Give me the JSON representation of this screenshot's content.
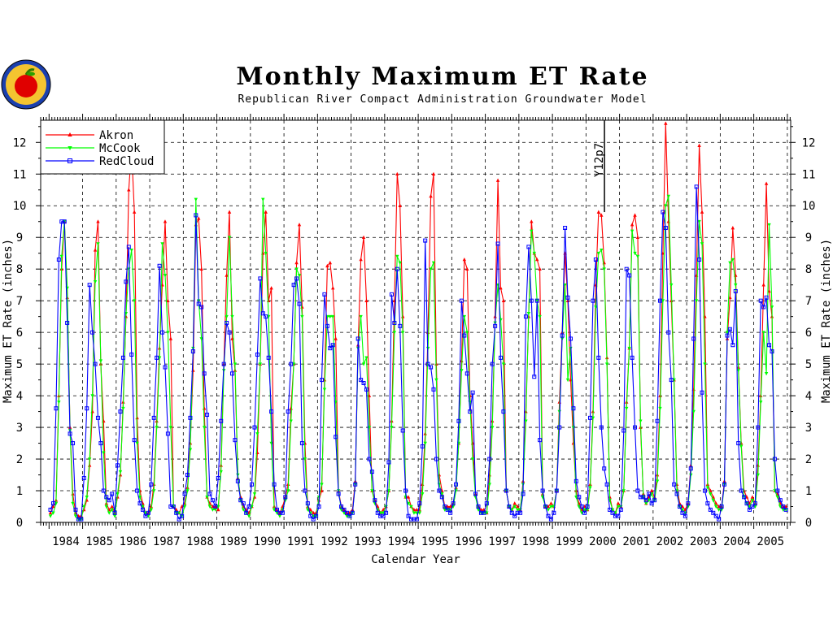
{
  "chart_data": {
    "type": "line",
    "title": "Monthly Maximum ET Rate",
    "subtitle": "Republican River Compact Administration Groundwater Model",
    "xlabel": "Calendar Year",
    "ylabel": "Maximum ET Rate (inches)",
    "ylim": [
      0,
      12.7
    ],
    "yticks": [
      0,
      1,
      2,
      3,
      4,
      5,
      6,
      7,
      8,
      9,
      10,
      11,
      12
    ],
    "xrange_years": [
      1983.75,
      2006.1
    ],
    "year_labels": [
      "1984",
      "1985",
      "1986",
      "1987",
      "1988",
      "1989",
      "1990",
      "1991",
      "1992",
      "1993",
      "1994",
      "1995",
      "1996",
      "1997",
      "1998",
      "1999",
      "2000",
      "2001",
      "2002",
      "2003",
      "2004",
      "2005"
    ],
    "grid": true,
    "legend_position": "top-left",
    "annotation": {
      "text": "Y12p7",
      "x_year": 2000.55
    },
    "series_monthly_note": "values are monthly maxima Jan..Dec for each year 1984-2005",
    "series": [
      {
        "name": "Akron",
        "color": "#ff0000",
        "marker": "triangle-up",
        "values": [
          [
            0.3,
            0.5,
            0.7,
            4.0,
            8.0,
            9.5,
            7.1,
            3.0,
            0.9,
            0.3,
            0.2,
            0.2
          ],
          [
            0.4,
            0.7,
            1.8,
            3.5,
            8.6,
            9.5,
            5.0,
            3.2,
            0.6,
            0.4,
            0.5,
            0.3
          ],
          [
            0.8,
            1.5,
            3.8,
            6.5,
            10.5,
            11.8,
            9.8,
            3.3,
            1.0,
            0.6,
            0.3,
            0.3
          ],
          [
            0.5,
            1.2,
            3.2,
            5.5,
            7.5,
            9.5,
            7.0,
            5.8,
            0.5,
            0.4,
            0.3,
            0.5
          ],
          [
            0.6,
            1.1,
            2.5,
            4.8,
            9.4,
            9.6,
            8.0,
            3.6,
            0.8,
            0.6,
            0.5,
            0.5
          ],
          [
            0.4,
            1.8,
            5.0,
            7.8,
            9.8,
            5.8,
            4.8,
            1.4,
            0.8,
            0.5,
            0.4,
            0.3
          ],
          [
            0.5,
            0.8,
            2.2,
            5.0,
            8.5,
            9.8,
            7.0,
            7.4,
            0.5,
            0.4,
            0.3,
            0.5
          ],
          [
            0.8,
            1.2,
            3.6,
            5.0,
            8.2,
            9.4,
            6.8,
            2.5,
            0.5,
            0.4,
            0.3,
            0.3
          ],
          [
            0.7,
            1.0,
            4.5,
            8.1,
            8.2,
            7.4,
            5.8,
            1.0,
            0.5,
            0.4,
            0.3,
            0.3
          ],
          [
            0.4,
            1.3,
            5.6,
            8.3,
            9.0,
            7.0,
            4.0,
            1.0,
            0.7,
            0.5,
            0.3,
            0.4
          ],
          [
            0.5,
            1.0,
            3.2,
            7.0,
            11.0,
            10.0,
            6.5,
            0.8,
            0.8,
            0.5,
            0.4,
            0.4
          ],
          [
            0.4,
            1.2,
            2.8,
            6.0,
            10.3,
            11.0,
            5.0,
            1.5,
            1.0,
            0.5,
            0.5,
            0.5
          ],
          [
            0.6,
            1.1,
            2.5,
            5.1,
            8.3,
            8.0,
            4.0,
            2.5,
            0.9,
            0.5,
            0.4,
            0.4
          ],
          [
            0.3,
            1.5,
            3.2,
            6.5,
            10.8,
            7.4,
            7.0,
            1.0,
            0.5,
            0.4,
            0.6,
            0.5
          ],
          [
            0.4,
            1.3,
            3.5,
            6.5,
            9.5,
            8.5,
            8.3,
            8.0,
            0.9,
            0.5,
            0.5,
            0.6
          ],
          [
            0.5,
            1.0,
            3.8,
            6.0,
            8.5,
            7.0,
            4.5,
            2.5,
            1.0,
            0.6,
            0.4,
            0.5
          ],
          [
            0.4,
            1.2,
            3.5,
            7.5,
            9.8,
            9.7,
            8.2,
            5.2,
            0.8,
            0.4,
            0.3,
            0.6
          ],
          [
            0.5,
            1.0,
            3.8,
            5.5,
            9.4,
            9.7,
            9.0,
            3.0,
            0.9,
            0.6,
            0.8,
            1.0
          ],
          [
            0.8,
            1.5,
            4.0,
            8.5,
            12.6,
            9.5,
            7.0,
            4.5,
            1.2,
            0.6,
            0.5,
            0.4
          ],
          [
            0.6,
            1.8,
            4.2,
            7.8,
            11.9,
            9.8,
            6.5,
            1.2,
            1.0,
            0.8,
            0.6,
            0.5
          ],
          [
            0.5,
            1.3,
            5.8,
            7.1,
            9.3,
            7.8,
            4.9,
            2.5,
            1.0,
            0.8,
            0.6,
            0.8
          ],
          [
            0.6,
            1.8,
            4.0,
            7.5,
            10.7,
            7.3,
            6.5,
            1.0,
            0.9,
            0.6,
            0.5,
            0.5
          ]
        ]
      },
      {
        "name": "McCook",
        "color": "#00ff00",
        "marker": "triangle-down",
        "values": [
          [
            0.2,
            0.3,
            0.6,
            3.8,
            8.4,
            9.5,
            7.4,
            2.9,
            0.6,
            0.2,
            0.1,
            0.1
          ],
          [
            0.5,
            0.8,
            2.0,
            4.0,
            7.6,
            8.8,
            5.1,
            2.2,
            0.5,
            0.3,
            0.4,
            0.2
          ],
          [
            0.9,
            1.6,
            3.6,
            6.6,
            8.0,
            8.6,
            7.0,
            2.5,
            0.8,
            0.5,
            0.3,
            0.2
          ],
          [
            0.4,
            1.0,
            3.0,
            5.2,
            8.8,
            7.8,
            6.0,
            3.0,
            0.5,
            0.3,
            0.3,
            0.2
          ],
          [
            0.5,
            1.0,
            2.3,
            5.5,
            10.2,
            7.0,
            5.8,
            3.0,
            0.8,
            0.5,
            0.4,
            0.4
          ],
          [
            0.5,
            1.6,
            4.8,
            6.5,
            9.0,
            6.5,
            5.0,
            1.5,
            0.7,
            0.4,
            0.3,
            0.2
          ],
          [
            0.5,
            0.9,
            2.8,
            5.0,
            10.2,
            8.5,
            6.5,
            2.5,
            0.4,
            0.3,
            0.2,
            0.4
          ],
          [
            0.7,
            1.0,
            3.2,
            5.0,
            8.0,
            7.8,
            6.5,
            2.0,
            0.4,
            0.3,
            0.2,
            0.2
          ],
          [
            0.8,
            1.2,
            4.2,
            6.5,
            6.5,
            6.5,
            3.8,
            1.0,
            0.4,
            0.3,
            0.2,
            0.2
          ],
          [
            0.3,
            1.2,
            5.5,
            6.5,
            5.0,
            5.2,
            3.0,
            1.0,
            0.6,
            0.4,
            0.3,
            0.3
          ],
          [
            0.5,
            1.0,
            3.0,
            6.0,
            8.4,
            8.2,
            6.0,
            0.8,
            0.6,
            0.5,
            0.3,
            0.3
          ],
          [
            0.3,
            0.9,
            2.5,
            5.5,
            8.0,
            8.2,
            4.5,
            1.2,
            0.9,
            0.4,
            0.4,
            0.4
          ],
          [
            0.5,
            1.0,
            2.5,
            4.8,
            6.5,
            6.0,
            3.8,
            2.0,
            0.8,
            0.4,
            0.3,
            0.3
          ],
          [
            0.3,
            1.2,
            3.0,
            6.3,
            7.5,
            6.4,
            5.0,
            1.0,
            0.5,
            0.4,
            0.5,
            0.4
          ],
          [
            0.4,
            1.2,
            3.2,
            6.6,
            9.2,
            8.5,
            7.0,
            6.5,
            0.8,
            0.5,
            0.4,
            0.5
          ],
          [
            0.5,
            1.0,
            3.5,
            5.8,
            7.5,
            4.5,
            5.5,
            3.0,
            0.8,
            0.5,
            0.3,
            0.4
          ],
          [
            0.4,
            1.1,
            3.3,
            6.8,
            8.5,
            8.6,
            8.0,
            5.0,
            0.7,
            0.4,
            0.3,
            0.5
          ],
          [
            0.5,
            1.0,
            3.6,
            5.5,
            9.2,
            8.5,
            8.4,
            3.2,
            0.8,
            0.6,
            0.7,
            0.9
          ],
          [
            0.7,
            1.3,
            3.6,
            7.0,
            10.0,
            10.3,
            7.5,
            4.5,
            1.0,
            0.5,
            0.4,
            0.3
          ],
          [
            0.5,
            1.5,
            3.5,
            7.0,
            9.5,
            8.8,
            5.0,
            1.1,
            0.9,
            0.7,
            0.5,
            0.4
          ],
          [
            0.4,
            1.2,
            6.0,
            8.2,
            8.3,
            7.5,
            4.8,
            2.4,
            0.8,
            0.6,
            0.5,
            0.7
          ],
          [
            0.5,
            1.5,
            3.8,
            6.0,
            4.7,
            9.4,
            6.8,
            1.0,
            0.8,
            0.5,
            0.4,
            0.4
          ]
        ]
      },
      {
        "name": "RedCloud",
        "color": "#0000ff",
        "marker": "square",
        "values": [
          [
            0.4,
            0.6,
            3.6,
            8.3,
            9.5,
            9.5,
            6.3,
            2.8,
            2.5,
            0.4,
            0.1,
            0.1
          ],
          [
            1.4,
            3.6,
            7.5,
            6.0,
            5.0,
            3.3,
            2.5,
            1.0,
            0.8,
            0.7,
            0.9,
            0.3
          ],
          [
            1.8,
            3.5,
            5.2,
            7.6,
            8.7,
            5.3,
            2.6,
            1.0,
            0.6,
            0.4,
            0.2,
            0.3
          ],
          [
            1.2,
            3.3,
            5.2,
            8.1,
            6.0,
            4.9,
            2.8,
            0.5,
            0.5,
            0.3,
            0.1,
            0.2
          ],
          [
            0.9,
            1.5,
            3.3,
            5.4,
            9.7,
            6.9,
            6.8,
            4.7,
            3.4,
            0.9,
            0.7,
            0.5
          ],
          [
            1.4,
            3.2,
            5.0,
            6.3,
            6.0,
            4.7,
            2.6,
            1.3,
            0.7,
            0.6,
            0.3,
            0.5
          ],
          [
            1.2,
            3.0,
            5.3,
            7.7,
            6.6,
            6.5,
            5.2,
            3.5,
            1.2,
            0.4,
            0.3,
            0.3
          ],
          [
            0.8,
            3.5,
            5.0,
            7.5,
            7.7,
            6.9,
            2.5,
            1.0,
            0.6,
            0.2,
            0.1,
            0.2
          ],
          [
            0.5,
            4.5,
            7.2,
            6.2,
            5.5,
            5.6,
            2.7,
            0.9,
            0.5,
            0.4,
            0.3,
            0.2
          ],
          [
            0.3,
            1.2,
            5.8,
            4.5,
            4.4,
            4.2,
            2.0,
            1.6,
            0.7,
            0.3,
            0.2,
            0.2
          ],
          [
            0.3,
            1.9,
            7.2,
            6.3,
            8.0,
            6.2,
            2.9,
            1.0,
            0.2,
            0.1,
            0.1,
            0.1
          ],
          [
            0.6,
            2.4,
            8.9,
            5.0,
            4.9,
            4.2,
            2.0,
            1.0,
            0.8,
            0.5,
            0.4,
            0.3
          ],
          [
            0.6,
            1.2,
            3.2,
            7.0,
            5.9,
            4.7,
            3.5,
            4.1,
            0.9,
            0.5,
            0.3,
            0.3
          ],
          [
            0.6,
            2.0,
            5.0,
            6.2,
            8.8,
            5.2,
            3.5,
            1.0,
            0.5,
            0.3,
            0.2,
            0.3
          ],
          [
            0.3,
            0.9,
            6.5,
            8.7,
            7.0,
            4.6,
            7.0,
            2.6,
            1.0,
            0.5,
            0.2,
            0.1
          ],
          [
            0.3,
            1.0,
            3.0,
            5.9,
            9.3,
            7.1,
            5.8,
            3.6,
            1.3,
            0.8,
            0.5,
            0.3
          ],
          [
            0.5,
            3.3,
            7.0,
            8.3,
            5.2,
            3.0,
            1.7,
            1.2,
            0.4,
            0.3,
            0.2,
            0.2
          ],
          [
            0.4,
            2.9,
            8.0,
            7.8,
            5.2,
            3.0,
            1.0,
            0.8,
            0.8,
            0.7,
            0.9,
            0.6
          ],
          [
            0.7,
            3.2,
            7.0,
            9.8,
            9.3,
            6.0,
            4.5,
            1.2,
            0.9,
            0.5,
            0.3,
            0.2
          ],
          [
            0.6,
            1.7,
            5.8,
            10.6,
            8.3,
            4.1,
            1.0,
            0.6,
            0.4,
            0.3,
            0.2,
            0.1
          ],
          [
            0.5,
            1.2,
            5.9,
            6.1,
            5.6,
            7.3,
            2.5,
            1.0,
            0.8,
            0.6,
            0.4,
            0.5
          ],
          [
            0.6,
            3.0,
            7.0,
            6.8,
            7.1,
            5.6,
            5.4,
            2.0,
            1.0,
            0.7,
            0.5,
            0.4
          ]
        ]
      }
    ]
  }
}
